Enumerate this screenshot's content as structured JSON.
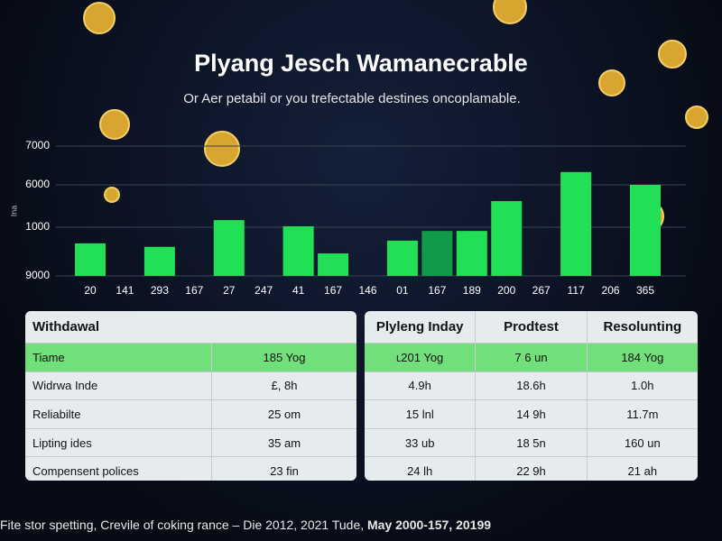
{
  "chart_data": {
    "type": "bar",
    "title": "Plyang Jesch Wamanecrable",
    "subtitle": "Or Aer petabil or you trefectable destines oncoplamable.",
    "y_label": "Ina",
    "y_axis_labels": [
      "7000",
      "6000",
      "1000",
      "9000"
    ],
    "categories": [
      "20",
      "141",
      "293",
      "167",
      "27",
      "247",
      "41",
      "167",
      "146",
      "01",
      "167",
      "189",
      "200",
      "267",
      "117",
      "206",
      "365"
    ],
    "values": [
      4490,
      null,
      4400,
      null,
      5090,
      null,
      4930,
      4230,
      null,
      4560,
      4810,
      4810,
      5580,
      null,
      6330,
      null,
      6000
    ],
    "colors": [
      "#22e055",
      null,
      "#22e055",
      null,
      "#22e055",
      null,
      "#22e055",
      "#22e055",
      null,
      "#22e055",
      "#119a48",
      "#22e055",
      "#22e055",
      null,
      "#22e055",
      null,
      "#22e055"
    ],
    "ylim": [
      3650,
      7000
    ]
  },
  "tables": [
    {
      "header": [
        "Withdawal",
        ""
      ],
      "rows": [
        [
          "Tiame",
          "185 Yog"
        ],
        [
          "Widrwa Inde",
          "£, 8h"
        ],
        [
          "Reliabilte",
          "25 om"
        ],
        [
          "Lipting ides",
          "35 am"
        ],
        [
          "Compensent polices",
          "23 fin"
        ]
      ]
    },
    {
      "header": [
        "Plyleng Inday",
        "Prodtest",
        "Resolunting"
      ],
      "rows": [
        [
          "ʟ201 Yog",
          "7 6 un",
          "184 Yog"
        ],
        [
          "4.9h",
          "18.6h",
          "1.0h"
        ],
        [
          "15 lnl",
          "14 9h",
          "11.7m"
        ],
        [
          "33 ub",
          "18 5n",
          "160 un"
        ],
        [
          "24 lh",
          "22 9h",
          "21 ah"
        ]
      ]
    }
  ],
  "footer": {
    "text": "Fite stor spetting, Crevile of coking rance – Die 2012, 2021 Tude,",
    "bold": "May 2000-157, 20199"
  }
}
